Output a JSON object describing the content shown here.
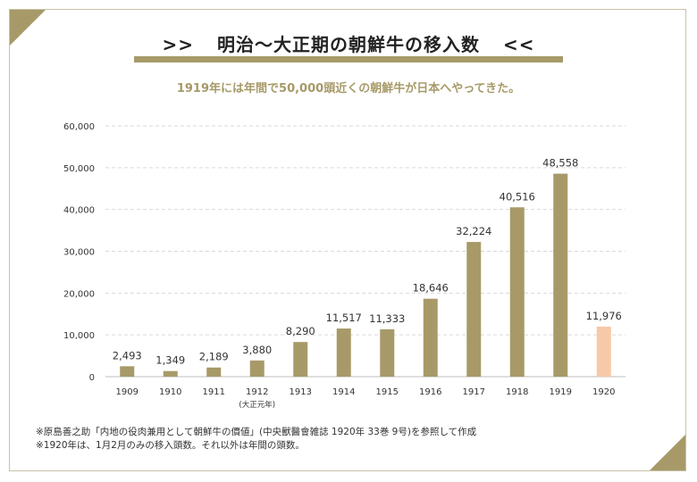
{
  "header": {
    "title": "明治〜大正期の朝鮮牛の移入数",
    "title_prefix": ">>",
    "title_suffix": "<<",
    "subtitle": "1919年には年間で50,000頭近くの朝鮮牛が日本へやってきた。"
  },
  "footnotes": [
    "※原島善之助「内地の役肉兼用として朝鮮牛の價値」(中央獸醫會雑誌 1920年 33巻 9号)を参照して作成",
    "※1920年は、1月2月のみの移入頭数。それ以外は年間の頭数。"
  ],
  "colors": {
    "accent": "#a79a68",
    "bar": "#a79a68",
    "bar_highlight": "#f8c9a8",
    "grid": "#d9d9d9",
    "text": "#333333"
  },
  "chart_data": {
    "type": "bar",
    "title": "明治〜大正期の朝鮮牛の移入数",
    "categories": [
      "1909",
      "1910",
      "1911",
      "1912",
      "1913",
      "1914",
      "1915",
      "1916",
      "1917",
      "1918",
      "1919",
      "1920"
    ],
    "values": [
      2493,
      1349,
      2189,
      3880,
      8290,
      11517,
      11333,
      18646,
      32224,
      40516,
      48558,
      11976
    ],
    "value_labels": [
      "2,493",
      "1,349",
      "2,189",
      "3,880",
      "8,290",
      "11,517",
      "11,333",
      "18,646",
      "32,224",
      "40,516",
      "48,558",
      "11,976"
    ],
    "highlight_category": "1920",
    "category_annotation": {
      "category": "1912",
      "text": "(大正元年)"
    },
    "ylim": [
      0,
      60000
    ],
    "yticks": [
      0,
      10000,
      20000,
      30000,
      40000,
      50000,
      60000
    ],
    "ytick_labels": [
      "0",
      "10,000",
      "20,000",
      "30,000",
      "40,000",
      "50,000",
      "60,000"
    ],
    "grid": true,
    "xlabel": "",
    "ylabel": ""
  }
}
